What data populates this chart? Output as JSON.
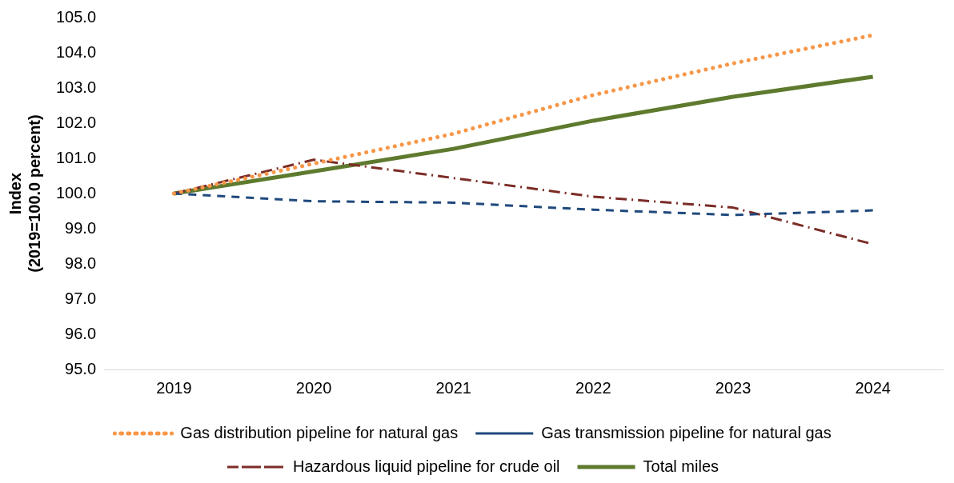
{
  "chart_data": {
    "type": "line",
    "ylabel": "Index (2019=100.0 percent)",
    "categories": [
      "2019",
      "2020",
      "2021",
      "2022",
      "2023",
      "2024"
    ],
    "series": [
      {
        "name": "Gas distribution pipeline for natural gas",
        "color": "#f79646",
        "line_style": "dotted",
        "values": [
          100.0,
          100.85,
          101.7,
          102.8,
          103.7,
          104.5
        ]
      },
      {
        "name": "Gas transmission pipeline for natural gas",
        "color": "#1f497d",
        "line_style": "dashed",
        "values": [
          100.0,
          99.78,
          99.74,
          99.54,
          99.39,
          99.52
        ]
      },
      {
        "name": "Hazardous liquid pipeline for crude oil",
        "color": "#7b2c26",
        "line_style": "dashdot",
        "values": [
          100.0,
          100.96,
          100.44,
          99.91,
          99.6,
          98.56
        ]
      },
      {
        "name": "Total miles",
        "color": "#5e7a2e",
        "line_style": "solid",
        "values": [
          100.0,
          100.63,
          101.27,
          102.07,
          102.75,
          103.32
        ]
      }
    ],
    "ylim": [
      95,
      105
    ],
    "yticks": [
      {
        "value": 95,
        "label": "95.0"
      },
      {
        "value": 96,
        "label": "96.0"
      },
      {
        "value": 97,
        "label": "97.0"
      },
      {
        "value": 98,
        "label": "98.0"
      },
      {
        "value": 99,
        "label": "99.0"
      },
      {
        "value": 100,
        "label": "100.0"
      },
      {
        "value": 101,
        "label": "101.0"
      },
      {
        "value": 102,
        "label": "102.0"
      },
      {
        "value": 103,
        "label": "103.0"
      },
      {
        "value": 104,
        "label": "104.0"
      },
      {
        "value": 105,
        "label": "105.0"
      }
    ],
    "grid": false,
    "legend": "bottom",
    "marker": "none"
  }
}
